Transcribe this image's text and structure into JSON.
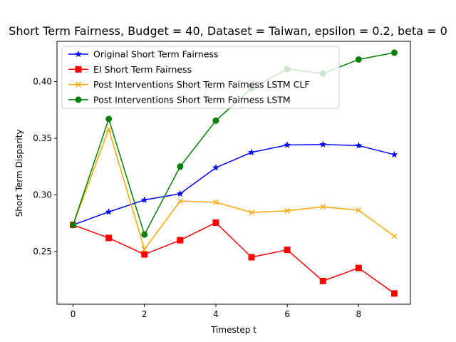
{
  "chart_data": {
    "type": "line",
    "title": "Short Term Fairness, Budget = 40, Dataset = Taiwan, epsilon = 0.2, beta = 0",
    "xlabel": "Timestep t",
    "ylabel": "Short Term Disparity",
    "xlim": [
      -0.45,
      9.45
    ],
    "ylim": [
      0.2035,
      0.4355
    ],
    "xticks": [
      0,
      2,
      4,
      6,
      8
    ],
    "xtick_labels": [
      "0",
      "2",
      "4",
      "6",
      "8"
    ],
    "yticks": [
      0.25,
      0.3,
      0.35,
      0.4
    ],
    "ytick_labels": [
      "0.25",
      "0.30",
      "0.35",
      "0.40"
    ],
    "grid": false,
    "legend_position": "top-left",
    "x": [
      0,
      1,
      2,
      3,
      4,
      5,
      6,
      7,
      8,
      9
    ],
    "series": [
      {
        "name": "Original Short Term Fairness",
        "color": "#0000ff",
        "marker": "star",
        "values": [
          0.2735,
          0.285,
          0.2955,
          0.301,
          0.324,
          0.3375,
          0.344,
          0.3445,
          0.3435,
          0.3355
        ]
      },
      {
        "name": "EI Short Term Fairness",
        "color": "#ff0000",
        "marker": "square",
        "values": [
          0.2735,
          0.262,
          0.2475,
          0.26,
          0.2755,
          0.245,
          0.2515,
          0.224,
          0.2355,
          0.213
        ]
      },
      {
        "name": "Post Interventions Short Term Fairness LSTM CLF",
        "color": "#ffa500",
        "marker": "x",
        "values": [
          0.2735,
          0.358,
          0.252,
          0.2945,
          0.2935,
          0.2845,
          0.286,
          0.2895,
          0.2865,
          0.2635
        ]
      },
      {
        "name": "Post Interventions Short Term Fairness LSTM",
        "color": "#008000",
        "marker": "circle",
        "values": [
          0.2735,
          0.367,
          0.265,
          0.325,
          0.3655,
          0.394,
          0.411,
          0.407,
          0.4195,
          0.4255
        ]
      }
    ]
  }
}
